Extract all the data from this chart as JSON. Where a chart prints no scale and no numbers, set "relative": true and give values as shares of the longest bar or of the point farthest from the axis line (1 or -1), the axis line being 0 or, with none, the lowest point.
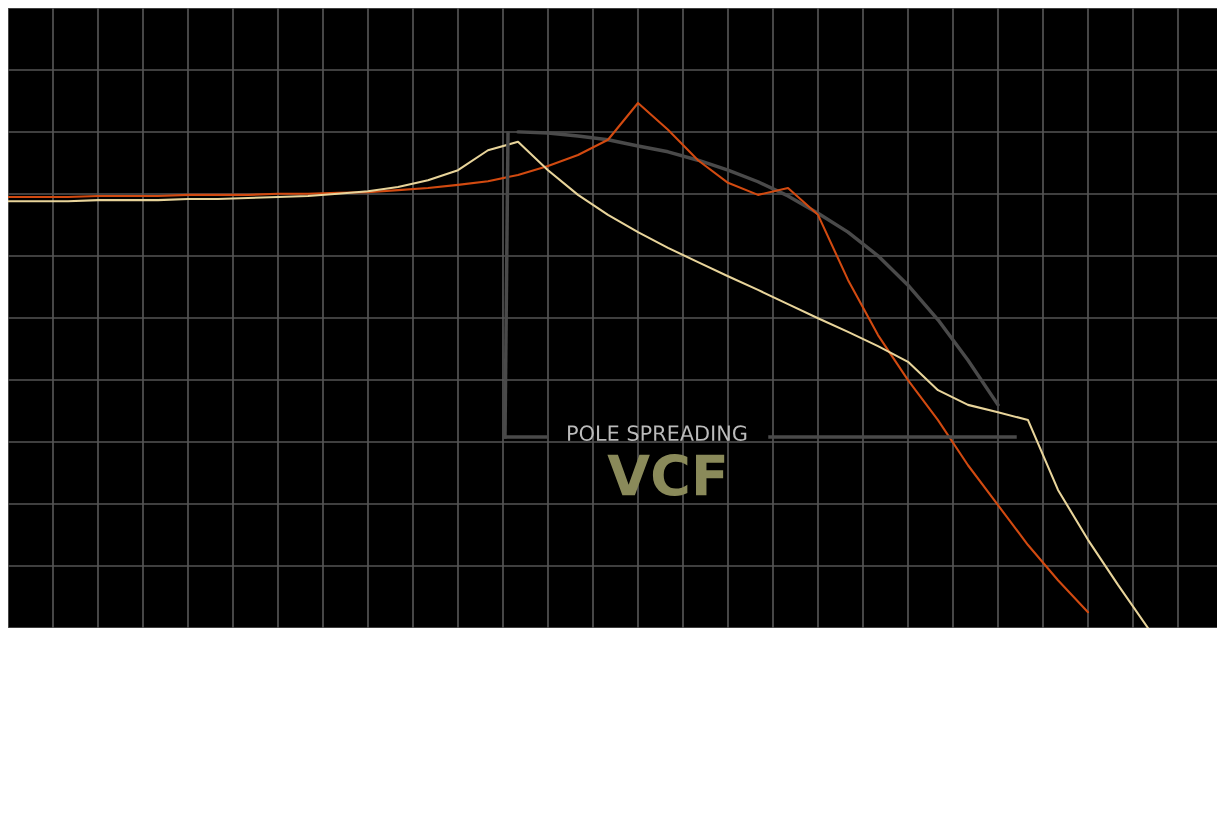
{
  "chart_data": {
    "type": "line",
    "relative": true,
    "grid": true,
    "tick_labels": false,
    "legend": false,
    "categories": [
      null,
      null,
      null,
      null,
      null,
      null,
      null,
      null,
      null,
      null,
      null,
      null,
      null,
      null,
      null,
      null,
      null,
      null,
      null,
      null,
      null,
      null,
      null,
      null,
      null,
      null,
      null,
      null,
      null,
      null,
      null,
      null,
      null,
      null,
      null,
      null,
      null,
      null,
      null,
      null,
      null
    ],
    "series": [
      {
        "color": "#4a4a4a",
        "values": [
          null,
          null,
          null,
          null,
          null,
          null,
          null,
          null,
          null,
          null,
          null,
          null,
          null,
          null,
          null,
          null,
          null,
          0.945,
          0.943,
          0.937,
          0.93,
          0.918,
          0.907,
          0.891,
          0.872,
          0.85,
          0.823,
          0.79,
          0.754,
          0.709,
          0.653,
          0.587,
          0.51,
          0.425,
          null,
          null,
          null,
          null,
          null,
          null,
          null
        ]
      },
      {
        "color": "#d24a10",
        "values": [
          0.821,
          0.821,
          0.821,
          0.823,
          0.823,
          0.823,
          0.825,
          0.825,
          0.825,
          0.827,
          0.827,
          0.829,
          0.83,
          0.834,
          0.838,
          0.844,
          0.851,
          0.863,
          0.88,
          0.901,
          0.93,
          1.0,
          0.949,
          0.891,
          0.848,
          0.825,
          0.838,
          0.787,
          0.663,
          0.558,
          0.472,
          0.396,
          0.31,
          0.234,
          0.158,
          0.091,
          0.03,
          null,
          null,
          null,
          null
        ]
      },
      {
        "color": "#e8d49a",
        "values": [
          0.813,
          0.813,
          0.813,
          0.815,
          0.815,
          0.815,
          0.817,
          0.817,
          0.819,
          0.821,
          0.823,
          0.827,
          0.832,
          0.84,
          0.853,
          0.872,
          0.91,
          0.926,
          0.872,
          0.825,
          0.787,
          0.754,
          0.724,
          0.697,
          0.67,
          0.644,
          0.617,
          0.59,
          0.564,
          0.537,
          0.507,
          0.453,
          0.425,
          0.411,
          0.396,
          0.263,
          0.168,
          0.082,
          0.0,
          null,
          null
        ]
      }
    ],
    "annotations": [
      "POLE SPREADING",
      "VCF"
    ]
  }
}
